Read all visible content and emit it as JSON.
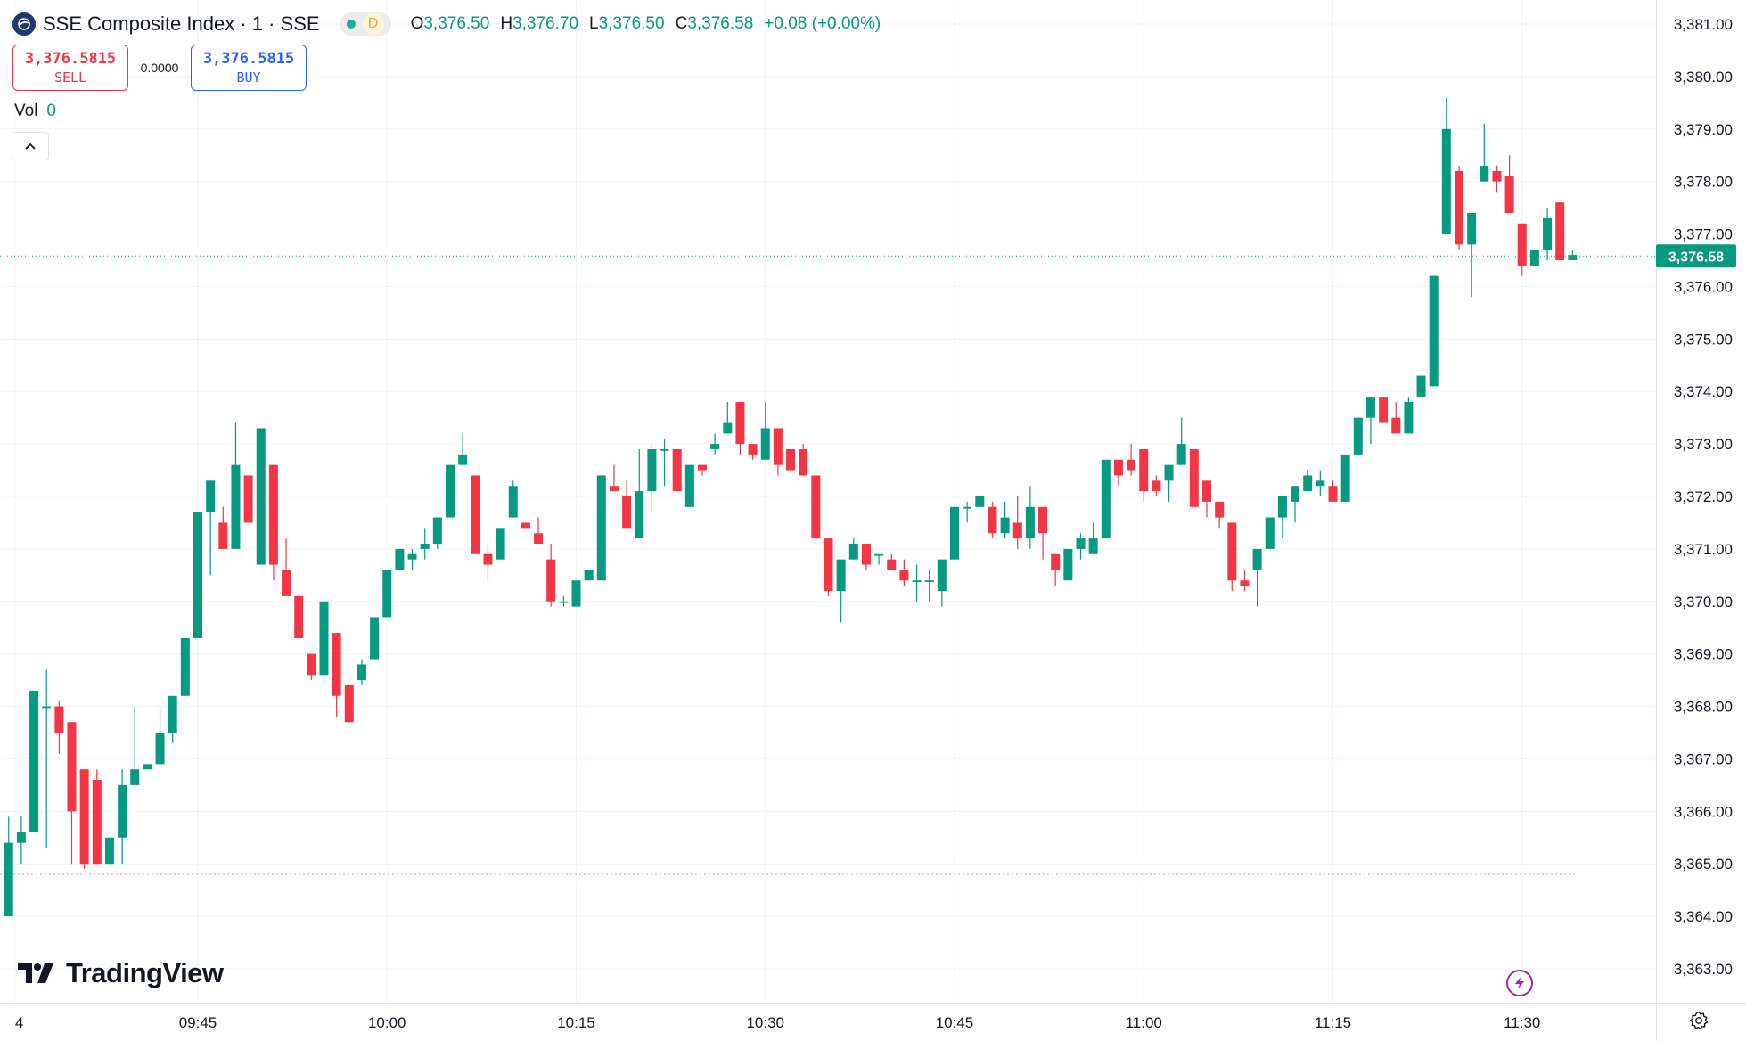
{
  "header": {
    "symbol_title": "SSE Composite Index · 1 · SSE",
    "session_badge": "D",
    "ohlc": [
      {
        "key": "O",
        "value": "3,376.50"
      },
      {
        "key": "H",
        "value": "3,376.70"
      },
      {
        "key": "L",
        "value": "3,376.50"
      },
      {
        "key": "C",
        "value": "3,376.58"
      }
    ],
    "change": "+0.08 (+0.00%)"
  },
  "trade": {
    "sell_price": "3,376.5815",
    "sell_label": "SELL",
    "spread": "0.0000",
    "buy_price": "3,376.5815",
    "buy_label": "BUY"
  },
  "volume": {
    "label": "Vol",
    "value": "0"
  },
  "branding": {
    "logo_text": "TradingView"
  },
  "colors": {
    "up": "#089981",
    "down": "#f23645",
    "grid": "#f0f3fa",
    "text": "#131722"
  },
  "icons": [
    "symbol-logo-icon",
    "market-status-dot-icon",
    "collapse-chevron-icon",
    "tradingview-logo-icon",
    "lightning-icon",
    "gear-icon"
  ],
  "chart_data": {
    "type": "candlestick",
    "interval": "1 minute",
    "ylim": [
      3362.4,
      3381.3
    ],
    "y_ticks": [
      "3,381.00",
      "3,380.00",
      "3,379.00",
      "3,378.00",
      "3,377.00",
      "3,376.00",
      "3,375.00",
      "3,374.00",
      "3,373.00",
      "3,372.00",
      "3,371.00",
      "3,370.00",
      "3,369.00",
      "3,368.00",
      "3,367.00",
      "3,366.00",
      "3,365.00",
      "3,364.00",
      "3,363.00"
    ],
    "x_ticks": [
      {
        "label": "4",
        "index": -14.5
      },
      {
        "label": "09:45",
        "index": 0
      },
      {
        "label": "10:00",
        "index": 15
      },
      {
        "label": "10:15",
        "index": 30
      },
      {
        "label": "10:30",
        "index": 45
      },
      {
        "label": "10:45",
        "index": 60
      },
      {
        "label": "11:00",
        "index": 75
      },
      {
        "label": "11:15",
        "index": 90
      },
      {
        "label": "11:30",
        "index": 105
      }
    ],
    "first_candle_index": -15,
    "last_price": "3,376.58",
    "last_price_value": 3376.58,
    "previous_close_value": 3364.8,
    "candles": [
      [
        3364.0,
        3365.4,
        3365.9,
        3364.0
      ],
      [
        3365.4,
        3365.6,
        3365.9,
        3365.0
      ],
      [
        3365.6,
        3368.3,
        3368.3,
        3365.6
      ],
      [
        3368.0,
        3368.0,
        3368.7,
        3365.3
      ],
      [
        3368.0,
        3367.5,
        3368.1,
        3367.1
      ],
      [
        3367.7,
        3366.0,
        3367.7,
        3365.0
      ],
      [
        3366.8,
        3365.0,
        3366.8,
        3364.9
      ],
      [
        3366.6,
        3365.0,
        3366.8,
        3365.0
      ],
      [
        3365.0,
        3365.5,
        3365.5,
        3365.0
      ],
      [
        3365.5,
        3366.5,
        3366.8,
        3365.0
      ],
      [
        3366.5,
        3366.8,
        3368.0,
        3366.5
      ],
      [
        3366.8,
        3366.9,
        3366.9,
        3366.8
      ],
      [
        3366.9,
        3367.5,
        3368.0,
        3366.9
      ],
      [
        3367.5,
        3368.2,
        3368.2,
        3367.3
      ],
      [
        3368.2,
        3369.3,
        3369.3,
        3368.2
      ],
      [
        3369.3,
        3371.7,
        3371.7,
        3369.3
      ],
      [
        3371.7,
        3372.3,
        3372.3,
        3370.5
      ],
      [
        3371.5,
        3371.0,
        3371.8,
        3371.0
      ],
      [
        3371.0,
        3372.6,
        3373.4,
        3371.0
      ],
      [
        3372.4,
        3371.5,
        3372.4,
        3371.5
      ],
      [
        3370.7,
        3373.3,
        3373.3,
        3370.7
      ],
      [
        3372.6,
        3370.7,
        3372.6,
        3370.4
      ],
      [
        3370.6,
        3370.1,
        3371.2,
        3370.1
      ],
      [
        3370.1,
        3369.3,
        3370.1,
        3369.3
      ],
      [
        3369.0,
        3368.6,
        3369.0,
        3368.5
      ],
      [
        3368.6,
        3370.0,
        3370.0,
        3368.4
      ],
      [
        3369.4,
        3368.2,
        3369.4,
        3367.8
      ],
      [
        3368.4,
        3367.7,
        3368.4,
        3367.7
      ],
      [
        3368.5,
        3368.8,
        3368.9,
        3368.4
      ],
      [
        3368.9,
        3369.7,
        3369.7,
        3368.9
      ],
      [
        3369.7,
        3370.6,
        3370.6,
        3369.7
      ],
      [
        3370.6,
        3371.0,
        3371.0,
        3370.6
      ],
      [
        3370.8,
        3370.9,
        3371.0,
        3370.6
      ],
      [
        3371.0,
        3371.1,
        3371.4,
        3370.8
      ],
      [
        3371.1,
        3371.6,
        3371.6,
        3371.0
      ],
      [
        3371.6,
        3372.6,
        3372.6,
        3371.6
      ],
      [
        3372.6,
        3372.8,
        3373.2,
        3372.6
      ],
      [
        3372.4,
        3370.9,
        3372.4,
        3370.9
      ],
      [
        3370.9,
        3370.7,
        3371.1,
        3370.4
      ],
      [
        3370.8,
        3371.4,
        3371.4,
        3370.8
      ],
      [
        3371.6,
        3372.2,
        3372.3,
        3371.6
      ],
      [
        3371.5,
        3371.4,
        3371.5,
        3371.4
      ],
      [
        3371.3,
        3371.1,
        3371.6,
        3371.1
      ],
      [
        3370.8,
        3370.0,
        3371.1,
        3369.9
      ],
      [
        3370.0,
        3370.0,
        3370.1,
        3369.9
      ],
      [
        3369.9,
        3370.4,
        3370.4,
        3369.9
      ],
      [
        3370.4,
        3370.6,
        3370.6,
        3370.4
      ],
      [
        3370.4,
        3372.4,
        3372.4,
        3370.4
      ],
      [
        3372.2,
        3372.1,
        3372.6,
        3372.1
      ],
      [
        3372.0,
        3371.4,
        3372.3,
        3371.4
      ],
      [
        3371.2,
        3372.1,
        3372.9,
        3371.2
      ],
      [
        3372.1,
        3372.9,
        3373.0,
        3371.7
      ],
      [
        3372.9,
        3372.9,
        3373.1,
        3372.2
      ],
      [
        3372.9,
        3372.1,
        3372.9,
        3372.1
      ],
      [
        3371.8,
        3372.6,
        3372.6,
        3371.8
      ],
      [
        3372.6,
        3372.5,
        3372.6,
        3372.4
      ],
      [
        3372.9,
        3373.0,
        3373.2,
        3372.8
      ],
      [
        3373.2,
        3373.4,
        3373.8,
        3373.2
      ],
      [
        3373.8,
        3373.0,
        3373.8,
        3372.8
      ],
      [
        3373.0,
        3372.8,
        3373.0,
        3372.7
      ],
      [
        3372.7,
        3373.3,
        3373.8,
        3372.7
      ],
      [
        3373.3,
        3372.6,
        3373.3,
        3372.4
      ],
      [
        3372.9,
        3372.5,
        3372.9,
        3372.5
      ],
      [
        3372.9,
        3372.4,
        3373.0,
        3372.4
      ],
      [
        3372.4,
        3371.2,
        3372.4,
        3371.2
      ],
      [
        3371.2,
        3370.2,
        3371.2,
        3370.1
      ],
      [
        3370.2,
        3370.8,
        3370.8,
        3369.6
      ],
      [
        3370.8,
        3371.1,
        3371.2,
        3370.8
      ],
      [
        3371.1,
        3370.7,
        3371.1,
        3370.6
      ],
      [
        3370.9,
        3370.9,
        3370.9,
        3370.7
      ],
      [
        3370.8,
        3370.6,
        3370.9,
        3370.6
      ],
      [
        3370.6,
        3370.4,
        3370.8,
        3370.3
      ],
      [
        3370.4,
        3370.4,
        3370.7,
        3370.0
      ],
      [
        3370.4,
        3370.4,
        3370.6,
        3370.0
      ],
      [
        3370.2,
        3370.8,
        3370.8,
        3369.9
      ],
      [
        3370.8,
        3371.8,
        3371.8,
        3370.8
      ],
      [
        3371.8,
        3371.8,
        3371.9,
        3371.5
      ],
      [
        3371.8,
        3372.0,
        3372.0,
        3371.8
      ],
      [
        3371.8,
        3371.3,
        3371.9,
        3371.2
      ],
      [
        3371.3,
        3371.6,
        3371.9,
        3371.2
      ],
      [
        3371.5,
        3371.2,
        3372.0,
        3371.0
      ],
      [
        3371.2,
        3371.8,
        3372.2,
        3371.0
      ],
      [
        3371.8,
        3371.3,
        3371.8,
        3370.8
      ],
      [
        3370.9,
        3370.6,
        3370.9,
        3370.3
      ],
      [
        3370.4,
        3371.0,
        3371.0,
        3370.4
      ],
      [
        3371.0,
        3371.2,
        3371.3,
        3370.8
      ],
      [
        3370.9,
        3371.2,
        3371.5,
        3370.9
      ],
      [
        3371.2,
        3372.7,
        3372.7,
        3371.2
      ],
      [
        3372.7,
        3372.4,
        3372.7,
        3372.2
      ],
      [
        3372.7,
        3372.5,
        3373.0,
        3372.4
      ],
      [
        3372.9,
        3372.1,
        3372.9,
        3371.9
      ],
      [
        3372.3,
        3372.1,
        3372.4,
        3372.0
      ],
      [
        3372.3,
        3372.6,
        3372.6,
        3371.9
      ],
      [
        3372.6,
        3373.0,
        3373.5,
        3372.6
      ],
      [
        3372.9,
        3371.8,
        3372.9,
        3371.8
      ],
      [
        3372.3,
        3371.9,
        3372.3,
        3371.6
      ],
      [
        3371.9,
        3371.6,
        3371.9,
        3371.4
      ],
      [
        3371.5,
        3370.4,
        3371.5,
        3370.2
      ],
      [
        3370.4,
        3370.3,
        3370.6,
        3370.2
      ],
      [
        3370.6,
        3371.0,
        3371.0,
        3369.9
      ],
      [
        3371.0,
        3371.6,
        3371.6,
        3371.0
      ],
      [
        3371.6,
        3372.0,
        3372.0,
        3371.2
      ],
      [
        3371.9,
        3372.2,
        3372.2,
        3371.5
      ],
      [
        3372.1,
        3372.4,
        3372.5,
        3372.1
      ],
      [
        3372.2,
        3372.3,
        3372.5,
        3372.0
      ],
      [
        3372.2,
        3371.9,
        3372.3,
        3371.9
      ],
      [
        3371.9,
        3372.8,
        3372.8,
        3371.9
      ],
      [
        3372.8,
        3373.5,
        3373.5,
        3372.8
      ],
      [
        3373.5,
        3373.9,
        3373.9,
        3373.0
      ],
      [
        3373.9,
        3373.4,
        3373.9,
        3373.4
      ],
      [
        3373.5,
        3373.2,
        3373.8,
        3373.2
      ],
      [
        3373.2,
        3373.8,
        3373.9,
        3373.2
      ],
      [
        3373.9,
        3374.3,
        3374.3,
        3374.0
      ],
      [
        3374.1,
        3376.2,
        3376.2,
        3374.1
      ],
      [
        3377.0,
        3379.0,
        3379.6,
        3377.0
      ],
      [
        3378.2,
        3376.8,
        3378.3,
        3376.7
      ],
      [
        3376.8,
        3377.4,
        3377.4,
        3375.8
      ],
      [
        3378.0,
        3378.3,
        3379.1,
        3378.0
      ],
      [
        3378.2,
        3378.0,
        3378.3,
        3377.8
      ],
      [
        3378.1,
        3377.4,
        3378.5,
        3377.4
      ],
      [
        3377.2,
        3376.4,
        3377.2,
        3376.2
      ],
      [
        3376.4,
        3376.7,
        3376.7,
        3376.4
      ],
      [
        3376.7,
        3377.3,
        3377.5,
        3376.5
      ],
      [
        3377.6,
        3376.5,
        3377.6,
        3376.5
      ],
      [
        3376.5,
        3376.6,
        3376.7,
        3376.5
      ]
    ]
  }
}
